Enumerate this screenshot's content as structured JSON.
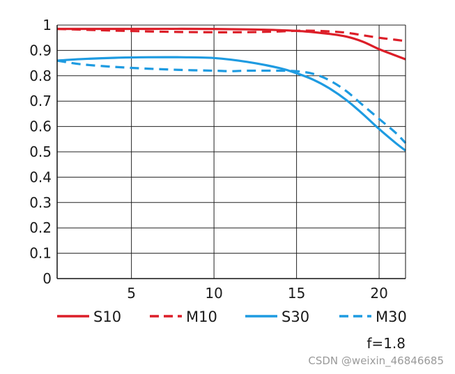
{
  "chart_data": {
    "type": "line",
    "title": "",
    "xlabel": "",
    "ylabel": "",
    "xlim": [
      0.5,
      21.6
    ],
    "ylim": [
      0,
      1
    ],
    "x_ticks": [
      5,
      10,
      15,
      20
    ],
    "y_ticks": [
      0,
      0.1,
      0.2,
      0.3,
      0.4,
      0.5,
      0.6,
      0.7,
      0.8,
      0.9,
      1
    ],
    "y_tick_labels": [
      "0",
      "0.1",
      "0.2",
      "0.3",
      "0.4",
      "0.5",
      "0.6",
      "0.7",
      "0.8",
      "0.9",
      "1"
    ],
    "grid": true,
    "legend_position": "bottom",
    "series": [
      {
        "name": "S10",
        "color": "#dc1e28",
        "dash": "solid",
        "x": [
          0.5,
          3,
          6,
          9,
          12,
          14,
          15.5,
          17,
          18,
          19,
          20,
          21,
          21.6
        ],
        "y": [
          0.985,
          0.985,
          0.985,
          0.985,
          0.983,
          0.98,
          0.975,
          0.965,
          0.955,
          0.935,
          0.905,
          0.88,
          0.865
        ]
      },
      {
        "name": "M10",
        "color": "#dc1e28",
        "dash": "dashed",
        "x": [
          0.5,
          3,
          6,
          9,
          12,
          14,
          15.5,
          17,
          18,
          19,
          20,
          21,
          21.6
        ],
        "y": [
          0.985,
          0.98,
          0.975,
          0.972,
          0.972,
          0.975,
          0.978,
          0.975,
          0.97,
          0.96,
          0.95,
          0.942,
          0.937
        ]
      },
      {
        "name": "S30",
        "color": "#1e9be1",
        "dash": "solid",
        "x": [
          0.5,
          2,
          4,
          6,
          8,
          10,
          12,
          14,
          15,
          16,
          17,
          18,
          19,
          20,
          21,
          21.6
        ],
        "y": [
          0.86,
          0.866,
          0.871,
          0.873,
          0.873,
          0.87,
          0.855,
          0.83,
          0.81,
          0.785,
          0.75,
          0.705,
          0.65,
          0.59,
          0.535,
          0.505
        ]
      },
      {
        "name": "M30",
        "color": "#1e9be1",
        "dash": "dashed",
        "x": [
          0.5,
          2,
          4,
          6,
          8,
          10,
          11,
          12,
          14,
          15,
          16,
          17,
          18,
          19,
          20,
          21,
          21.6
        ],
        "y": [
          0.86,
          0.845,
          0.835,
          0.828,
          0.823,
          0.82,
          0.818,
          0.82,
          0.82,
          0.818,
          0.808,
          0.782,
          0.74,
          0.685,
          0.63,
          0.575,
          0.535
        ]
      }
    ]
  },
  "annotation": "f=1.8",
  "watermark": "CSDN @weixin_46846685"
}
